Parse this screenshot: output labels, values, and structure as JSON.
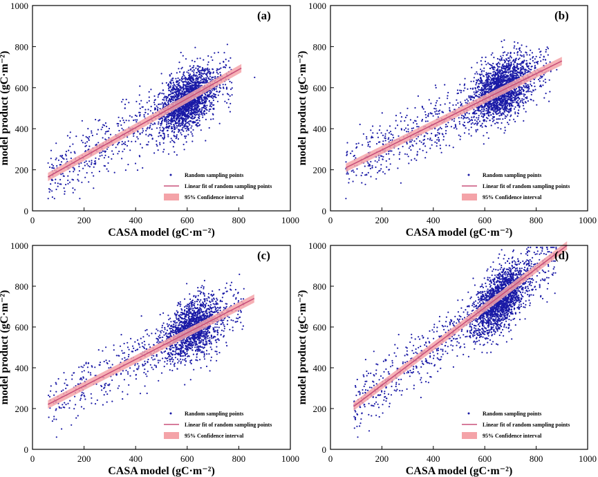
{
  "colors": {
    "points": "#1a1aa6",
    "fit_line": "#c8507a",
    "confidence_fill": "#f4a3a8",
    "axis": "#000000"
  },
  "chart_data": [
    {
      "type": "scatter",
      "panel_label": "(a)",
      "xlabel": "CASA model (gC·m⁻²)",
      "ylabel": "model product (gC·m⁻²)",
      "xlim": [
        0,
        1000
      ],
      "ylim": [
        0,
        1000
      ],
      "xticks": [
        "0",
        "200",
        "400",
        "600",
        "800",
        "1000"
      ],
      "yticks": [
        "0",
        "200",
        "400",
        "600",
        "800",
        "1000"
      ],
      "legend": [
        "Random sampling points",
        "Linear fit of random sampling points",
        "95% Confidence interval"
      ],
      "fit": {
        "x": [
          60,
          810
        ],
        "y": [
          165,
          695
        ]
      },
      "cluster": {
        "x_center": 600,
        "y_center": 530
      },
      "n_points": 2500
    },
    {
      "type": "scatter",
      "panel_label": "(b)",
      "xlabel": "CASA model (gC·m⁻²)",
      "ylabel": "model product (gC·m⁻²)",
      "xlim": [
        0,
        1000
      ],
      "ylim": [
        0,
        1000
      ],
      "xticks": [
        "0",
        "200",
        "400",
        "600",
        "800",
        "1000"
      ],
      "yticks": [
        "0",
        "200",
        "400",
        "600",
        "800",
        "1000"
      ],
      "legend": [
        "Random sampling points",
        "Linear fit of random sampling points",
        "95% Confidence interval"
      ],
      "fit": {
        "x": [
          60,
          900
        ],
        "y": [
          210,
          730
        ]
      },
      "cluster": {
        "x_center": 660,
        "y_center": 590
      },
      "n_points": 2500
    },
    {
      "type": "scatter",
      "panel_label": "(c)",
      "xlabel": "CASA model (gC·m⁻²)",
      "ylabel": "model product (gC·m⁻²)",
      "xlim": [
        0,
        1000
      ],
      "ylim": [
        0,
        1000
      ],
      "xticks": [
        "0",
        "200",
        "400",
        "600",
        "800",
        "1000"
      ],
      "yticks": [
        "0",
        "200",
        "400",
        "600",
        "800",
        "1000"
      ],
      "legend": [
        "Random sampling points",
        "Linear fit of random sampling points",
        "95% Confidence interval"
      ],
      "fit": {
        "x": [
          60,
          860
        ],
        "y": [
          220,
          740
        ]
      },
      "cluster": {
        "x_center": 620,
        "y_center": 590
      },
      "n_points": 2000
    },
    {
      "type": "scatter",
      "panel_label": "(d)",
      "xlabel": "CASA model (gC·m⁻²)",
      "ylabel": "model product (gC·m⁻²)",
      "xlim": [
        0,
        1000
      ],
      "ylim": [
        0,
        1000
      ],
      "xticks": [
        "0",
        "200",
        "400",
        "600",
        "800",
        "1000"
      ],
      "yticks": [
        "0",
        "200",
        "400",
        "600",
        "800",
        "1000"
      ],
      "legend": [
        "Random sampling points",
        "Linear fit of random sampling points",
        "95% Confidence interval"
      ],
      "fit": {
        "x": [
          90,
          920
        ],
        "y": [
          210,
          1000
        ]
      },
      "cluster": {
        "x_center": 660,
        "y_center": 720
      },
      "n_points": 2500
    }
  ]
}
